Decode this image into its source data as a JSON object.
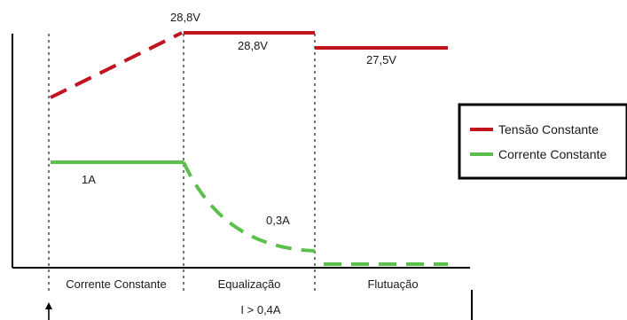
{
  "colors": {
    "tensao": "#c0141f",
    "corrente": "#5bbf4c",
    "axis": "#000000",
    "divider": "#555555"
  },
  "labels": {
    "peak_voltage": "28,8V",
    "equalization_voltage": "28,8V",
    "float_voltage": "27,5V",
    "constant_current": "1A",
    "taper_current": "0,3A",
    "current_threshold": "I > 0,4A"
  },
  "phases": [
    {
      "label": "Corrente Constante"
    },
    {
      "label": "Equalização"
    },
    {
      "label": "Flutuação"
    }
  ],
  "legend": {
    "items": [
      {
        "label": "Tensão Constante"
      },
      {
        "label": "Corrente Constante"
      }
    ]
  }
}
